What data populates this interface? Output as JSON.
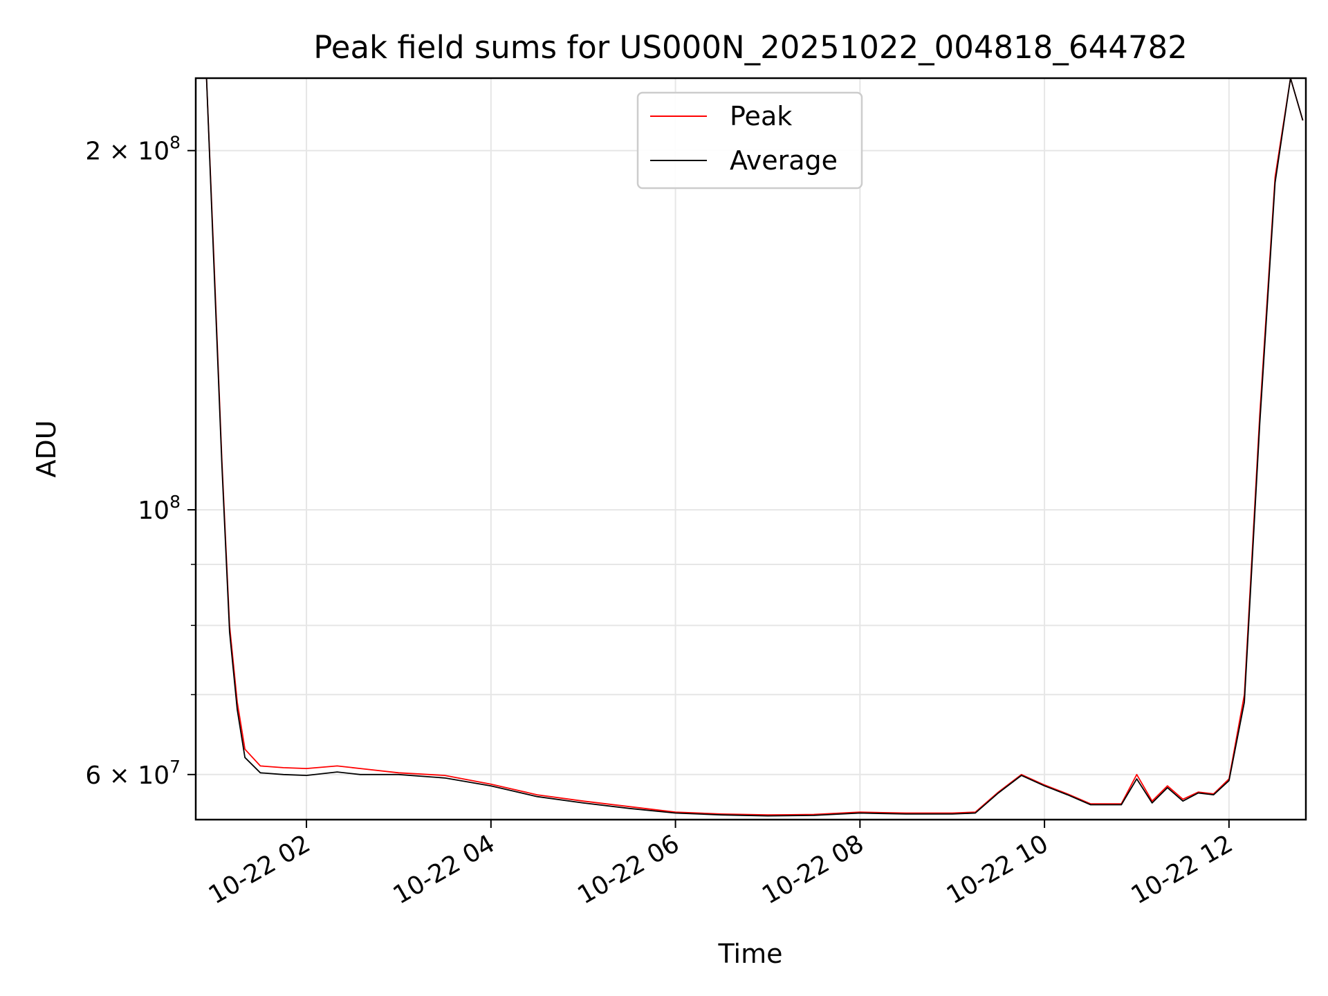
{
  "chart_data": {
    "type": "line",
    "title": "Peak field sums for US000N_20251022_004818_644782",
    "xlabel": "Time",
    "ylabel": "ADU",
    "yscale": "log",
    "xlim": [
      "2025-10-22 00:48",
      "2025-10-22 12:50"
    ],
    "ylim": [
      55000000,
      230000000
    ],
    "grid": true,
    "legend": "upper center",
    "x_ticks": [
      {
        "value": "2025-10-22 02:00",
        "label": "10-22 02"
      },
      {
        "value": "2025-10-22 04:00",
        "label": "10-22 04"
      },
      {
        "value": "2025-10-22 06:00",
        "label": "10-22 06"
      },
      {
        "value": "2025-10-22 08:00",
        "label": "10-22 08"
      },
      {
        "value": "2025-10-22 10:00",
        "label": "10-22 10"
      },
      {
        "value": "2025-10-22 12:00",
        "label": "10-22 12"
      }
    ],
    "y_ticks": [
      {
        "value": 60000000,
        "label": "6 × 10",
        "exp": "7"
      },
      {
        "value": 100000000,
        "label": "10",
        "exp": "8"
      },
      {
        "value": 200000000,
        "label": "2 × 10",
        "exp": "8"
      }
    ],
    "y_minor_ticks": [
      70000000,
      80000000,
      90000000
    ],
    "series": [
      {
        "name": "Peak",
        "color": "#ff0000",
        "x": [
          "2025-10-22 00:55",
          "2025-10-22 01:00",
          "2025-10-22 01:05",
          "2025-10-22 01:10",
          "2025-10-22 01:15",
          "2025-10-22 01:20",
          "2025-10-22 01:30",
          "2025-10-22 01:45",
          "2025-10-22 02:00",
          "2025-10-22 02:20",
          "2025-10-22 02:35",
          "2025-10-22 03:00",
          "2025-10-22 03:30",
          "2025-10-22 04:00",
          "2025-10-22 04:30",
          "2025-10-22 05:00",
          "2025-10-22 05:30",
          "2025-10-22 06:00",
          "2025-10-22 06:30",
          "2025-10-22 07:00",
          "2025-10-22 07:30",
          "2025-10-22 08:00",
          "2025-10-22 08:30",
          "2025-10-22 09:00",
          "2025-10-22 09:15",
          "2025-10-22 09:30",
          "2025-10-22 09:45",
          "2025-10-22 10:00",
          "2025-10-22 10:15",
          "2025-10-22 10:30",
          "2025-10-22 10:50",
          "2025-10-22 11:00",
          "2025-10-22 11:10",
          "2025-10-22 11:20",
          "2025-10-22 11:30",
          "2025-10-22 11:40",
          "2025-10-22 11:50",
          "2025-10-22 12:00",
          "2025-10-22 12:10",
          "2025-10-22 12:20",
          "2025-10-22 12:30",
          "2025-10-22 12:40",
          "2025-10-22 12:48"
        ],
        "values": [
          230000000,
          160000000,
          110000000,
          80000000,
          69000000,
          63000000,
          61000000,
          60800000,
          60700000,
          61000000,
          60700000,
          60200000,
          59900000,
          58900000,
          57700000,
          57000000,
          56400000,
          55800000,
          55600000,
          55500000,
          55550000,
          55800000,
          55700000,
          55700000,
          55800000,
          58000000,
          60000000,
          58800000,
          57800000,
          56700000,
          56700000,
          60000000,
          57000000,
          58700000,
          57200000,
          58000000,
          57800000,
          59500000,
          70000000,
          120000000,
          190000000,
          230000000,
          212000000
        ]
      },
      {
        "name": "Average",
        "color": "#000000",
        "x": [
          "2025-10-22 00:55",
          "2025-10-22 01:00",
          "2025-10-22 01:05",
          "2025-10-22 01:10",
          "2025-10-22 01:15",
          "2025-10-22 01:20",
          "2025-10-22 01:30",
          "2025-10-22 01:45",
          "2025-10-22 02:00",
          "2025-10-22 02:20",
          "2025-10-22 02:35",
          "2025-10-22 03:00",
          "2025-10-22 03:30",
          "2025-10-22 04:00",
          "2025-10-22 04:30",
          "2025-10-22 05:00",
          "2025-10-22 05:30",
          "2025-10-22 06:00",
          "2025-10-22 06:30",
          "2025-10-22 07:00",
          "2025-10-22 07:30",
          "2025-10-22 08:00",
          "2025-10-22 08:30",
          "2025-10-22 09:00",
          "2025-10-22 09:15",
          "2025-10-22 09:30",
          "2025-10-22 09:45",
          "2025-10-22 10:00",
          "2025-10-22 10:15",
          "2025-10-22 10:30",
          "2025-10-22 10:50",
          "2025-10-22 11:00",
          "2025-10-22 11:10",
          "2025-10-22 11:20",
          "2025-10-22 11:30",
          "2025-10-22 11:40",
          "2025-10-22 11:50",
          "2025-10-22 12:00",
          "2025-10-22 12:10",
          "2025-10-22 12:20",
          "2025-10-22 12:30",
          "2025-10-22 12:40",
          "2025-10-22 12:48"
        ],
        "values": [
          230000000,
          158000000,
          109000000,
          79000000,
          68000000,
          62000000,
          60200000,
          60000000,
          59900000,
          60300000,
          60000000,
          60000000,
          59600000,
          58700000,
          57500000,
          56800000,
          56200000,
          55700000,
          55500000,
          55400000,
          55450000,
          55700000,
          55600000,
          55600000,
          55700000,
          57900000,
          59900000,
          58700000,
          57700000,
          56600000,
          56600000,
          59500000,
          56800000,
          58500000,
          57000000,
          57900000,
          57700000,
          59300000,
          69000000,
          118000000,
          188000000,
          230000000,
          212000000
        ]
      }
    ]
  }
}
